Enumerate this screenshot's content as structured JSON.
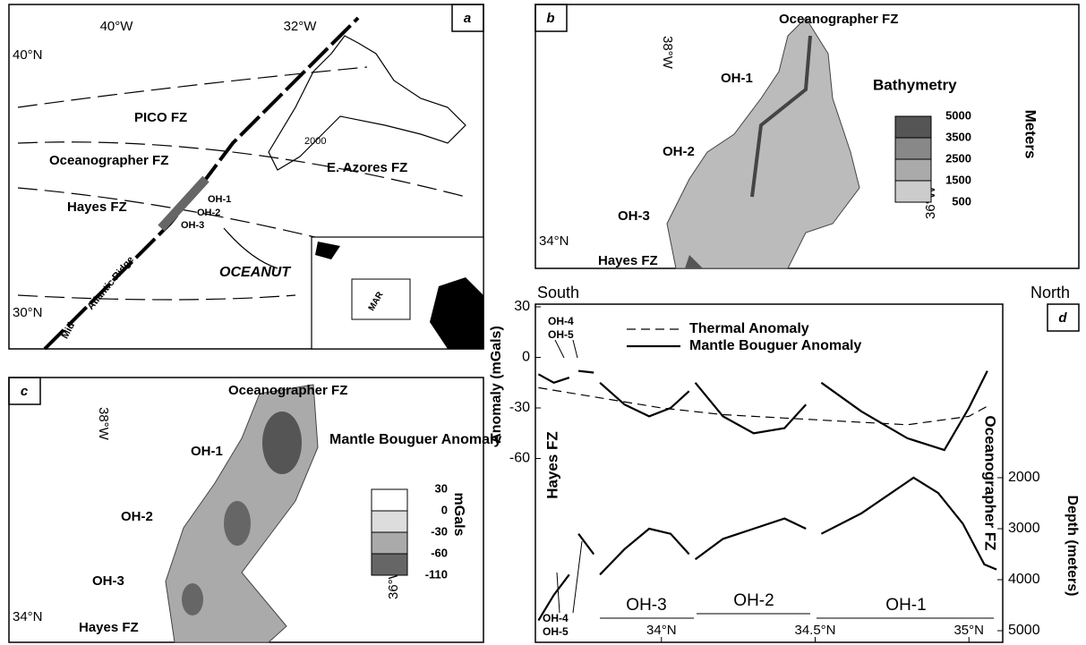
{
  "panels": {
    "a": {
      "letter": "a",
      "lon_labels": [
        "40°W",
        "32°W"
      ],
      "lat_labels": [
        "40°N",
        "30°N"
      ],
      "labels": [
        "PICO FZ",
        "Oceanographer FZ",
        "E. Azores FZ",
        "Hayes FZ",
        "2000",
        "OH-1",
        "OH-2",
        "OH-3",
        "OCEANUT",
        "Mid-",
        "Atlantic Ridge",
        "MAR"
      ]
    },
    "b": {
      "letter": "b",
      "labels": [
        "Oceanographer FZ",
        "OH-1",
        "OH-2",
        "OH-3",
        "Hayes FZ",
        "38°W",
        "36°W",
        "34°N"
      ],
      "legend_title": "Bathymetry",
      "legend_unit": "Meters",
      "legend_values": [
        5000,
        3500,
        2500,
        1500,
        500
      ]
    },
    "c": {
      "letter": "c",
      "labels": [
        "Oceanographer FZ",
        "OH-1",
        "OH-2",
        "OH-3",
        "Hayes FZ",
        "38°W",
        "36°W",
        "34°N"
      ],
      "legend_title": "Mantle Bouguer Anomaly",
      "legend_unit": "mGals",
      "legend_values": [
        30,
        0,
        -30,
        -60,
        -110
      ]
    }
  },
  "chart_data": {
    "type": "line",
    "letter": "d",
    "ylabel": "Anomaly (mGals)",
    "y2label": "Depth (meters)",
    "annotations": [
      "South",
      "North",
      "Hayes FZ",
      "Oceanographer FZ",
      "OH-4",
      "OH-5",
      "OH-4",
      "OH-5",
      "OH-3",
      "OH-2",
      "OH-1"
    ],
    "xlim": [
      33.59,
      35.11
    ],
    "xticks": [
      {
        "value": 34,
        "label": "34°N"
      },
      {
        "value": 34.5,
        "label": "34.5°N"
      },
      {
        "value": 35,
        "label": "35°N"
      }
    ],
    "ylim": [
      -167.5,
      30
    ],
    "yticks": [
      30,
      0,
      -30,
      -60
    ],
    "y2lim": [
      5175,
      -1350
    ],
    "y2ticks": [
      2000,
      3000,
      4000,
      5000
    ],
    "series": [
      {
        "name": "Thermal Anomaly",
        "color": "#000",
        "dashed": true,
        "x": [
          33.6,
          33.8,
          34.0,
          34.2,
          34.4,
          34.6,
          34.8,
          35.0,
          35.07
        ],
        "values": [
          -18,
          -24,
          -30,
          -34,
          -36,
          -38,
          -40,
          -35,
          -28
        ]
      },
      {
        "name": "Mantle Bouguer Anomaly",
        "color": "#000",
        "dashed": false,
        "x": [
          33.6,
          33.65,
          33.7,
          null,
          33.73,
          33.78,
          null,
          33.8,
          33.88,
          33.96,
          34.03,
          34.09,
          null,
          34.11,
          34.2,
          34.3,
          34.4,
          34.47,
          null,
          34.52,
          34.65,
          34.8,
          34.92,
          35.0,
          35.06
        ],
        "values": [
          -10,
          -15,
          -12,
          null,
          -8,
          -9,
          null,
          -15,
          -28,
          -35,
          -30,
          -20,
          null,
          -15,
          -35,
          -45,
          -42,
          -28,
          null,
          -15,
          -32,
          -48,
          -55,
          -30,
          -8
        ]
      },
      {
        "axis": "y2",
        "color": "#000",
        "dashed": false,
        "x": [
          33.6,
          33.65,
          33.7,
          null,
          33.73,
          33.78,
          null,
          33.8,
          33.88,
          33.96,
          34.03,
          34.09,
          null,
          34.11,
          34.2,
          34.3,
          34.4,
          34.47,
          null,
          34.52,
          34.65,
          34.82,
          34.9,
          34.98,
          35.05,
          35.09
        ],
        "values": [
          4800,
          4300,
          3900,
          null,
          3100,
          3500,
          null,
          3900,
          3400,
          3000,
          3100,
          3500,
          null,
          3600,
          3200,
          3000,
          2800,
          3000,
          null,
          3100,
          2700,
          2000,
          2300,
          2900,
          3700,
          3800
        ]
      }
    ]
  }
}
